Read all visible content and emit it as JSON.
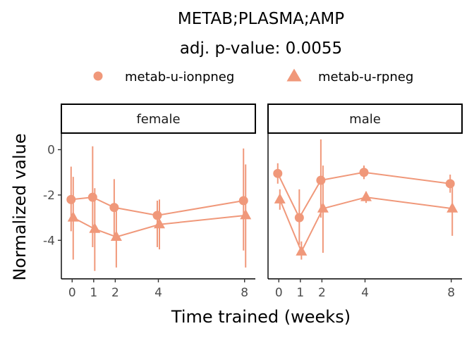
{
  "chart_data": {
    "type": "line",
    "title": "METAB;PLASMA;AMP",
    "subtitle": "adj. p-value: 0.0055",
    "xlabel": "Time trained (weeks)",
    "ylabel": "Normalized value",
    "x_ticks": [
      0,
      1,
      2,
      4,
      8
    ],
    "y_ticks": [
      0,
      -2,
      -4
    ],
    "xlim": [
      -0.5,
      8.5
    ],
    "ylim": [
      -5.7,
      0.7
    ],
    "grid": false,
    "legend_position": "top",
    "color": "#f0987a",
    "legend": [
      {
        "name": "metab-u-ionpneg",
        "shape": "circle"
      },
      {
        "name": "metab-u-rpneg",
        "shape": "triangle"
      }
    ],
    "panels": [
      {
        "label": "female",
        "series": [
          {
            "name": "metab-u-ionpneg",
            "shape": "circle",
            "x": [
              0,
              1,
              2,
              4,
              8
            ],
            "y": [
              -2.2,
              -2.1,
              -2.55,
              -2.9,
              -2.25
            ],
            "ymin": [
              -3.6,
              -4.3,
              -3.8,
              -4.3,
              -4.45
            ],
            "ymax": [
              -0.75,
              0.15,
              -1.3,
              -2.25,
              0.05
            ]
          },
          {
            "name": "metab-u-rpneg",
            "shape": "triangle",
            "x": [
              0,
              1,
              2,
              4,
              8
            ],
            "y": [
              -3.0,
              -3.5,
              -3.85,
              -3.3,
              -2.9
            ],
            "ymin": [
              -4.85,
              -5.35,
              -5.2,
              -4.4,
              -5.2
            ],
            "ymax": [
              -1.2,
              -1.7,
              -2.5,
              -2.2,
              -0.65
            ]
          }
        ]
      },
      {
        "label": "male",
        "series": [
          {
            "name": "metab-u-ionpneg",
            "shape": "circle",
            "x": [
              0,
              1,
              2,
              4,
              8
            ],
            "y": [
              -1.05,
              -3.0,
              -1.35,
              -1.0,
              -1.5
            ],
            "ymin": [
              -1.5,
              -4.2,
              -3.0,
              -1.3,
              -1.9
            ],
            "ymax": [
              -0.6,
              -1.75,
              0.45,
              -0.7,
              -1.1
            ]
          },
          {
            "name": "metab-u-rpneg",
            "shape": "triangle",
            "x": [
              0,
              1,
              2,
              4,
              8
            ],
            "y": [
              -2.2,
              -4.5,
              -2.6,
              -2.1,
              -2.6
            ],
            "ymin": [
              -2.65,
              -4.85,
              -4.55,
              -2.35,
              -3.8
            ],
            "ymax": [
              -1.75,
              -4.05,
              -0.7,
              -1.85,
              -1.4
            ]
          }
        ]
      }
    ]
  }
}
